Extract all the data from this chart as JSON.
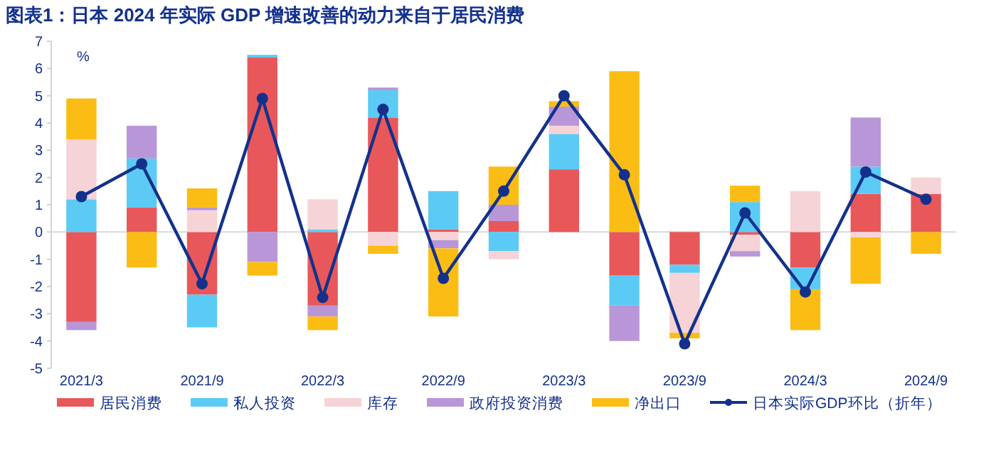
{
  "chart_data": {
    "type": "bar",
    "stacked": true,
    "title": "图表1：日本 2024 年实际 GDP 增速改善的动力来自于居民消费",
    "ylabel": "%",
    "categories": [
      "2021/3",
      null,
      "2021/9",
      null,
      "2022/3",
      null,
      "2022/9",
      null,
      "2023/3",
      null,
      "2023/9",
      null,
      "2024/3",
      null,
      "2024/9"
    ],
    "series": [
      {
        "name": "居民消费",
        "color": "#e8585a",
        "values": [
          -3.3,
          0.9,
          -2.3,
          6.4,
          -2.7,
          4.2,
          0.1,
          0.4,
          2.3,
          -1.6,
          -1.2,
          -0.1,
          -1.3,
          1.4,
          1.4
        ]
      },
      {
        "name": "私人投资",
        "color": "#5bcbf5",
        "values": [
          1.2,
          1.8,
          -1.2,
          0.1,
          0.1,
          1.0,
          1.4,
          -0.7,
          1.3,
          -1.1,
          -0.3,
          1.1,
          -0.8,
          1.0,
          null
        ]
      },
      {
        "name": "库存",
        "color": "#f6d3d6",
        "values": [
          2.2,
          null,
          0.8,
          null,
          1.1,
          -0.5,
          -0.3,
          -0.3,
          0.3,
          null,
          -2.2,
          -0.6,
          1.5,
          -0.2,
          0.6
        ]
      },
      {
        "name": "政府投资消费",
        "color": "#b996d8",
        "values": [
          -0.3,
          1.2,
          0.1,
          -1.1,
          -0.4,
          0.1,
          -0.3,
          0.6,
          0.7,
          -1.3,
          null,
          -0.2,
          null,
          1.8,
          null
        ]
      },
      {
        "name": "净出口",
        "color": "#fbbd14",
        "values": [
          1.5,
          -1.3,
          0.7,
          -0.5,
          -0.5,
          -0.3,
          -2.5,
          1.4,
          0.2,
          5.9,
          -0.2,
          0.6,
          -1.5,
          -1.7,
          -0.8
        ]
      },
      {
        "name": "日本实际GDP环比（折年）",
        "type": "line",
        "color": "#13318c",
        "marker": "circle",
        "values": [
          1.3,
          2.5,
          -1.9,
          4.9,
          -2.4,
          4.5,
          -1.7,
          1.5,
          5.0,
          2.1,
          -4.1,
          0.7,
          -2.2,
          2.2,
          1.2
        ]
      }
    ],
    "ylim": [
      -5,
      7
    ],
    "yticks": [
      -5,
      -4,
      -3,
      -2,
      -1,
      0,
      1,
      2,
      3,
      4,
      5,
      6,
      7
    ],
    "legend": "bottom"
  }
}
